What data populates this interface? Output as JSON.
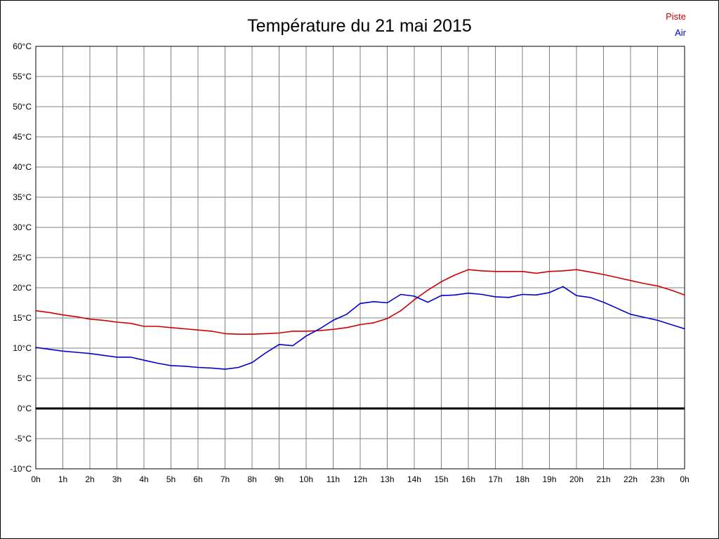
{
  "header": {
    "title": "Température du 21 mai 2015"
  },
  "chart_data": {
    "type": "line",
    "title": "Température du 21 mai 2015",
    "xlabel": "",
    "ylabel": "",
    "ylim": [
      -10,
      60
    ],
    "xlim_hours": [
      0,
      24
    ],
    "x_step_hours": 0.5,
    "grid": true,
    "legend_position": "top-right",
    "zero_line": true,
    "x_ticks": [
      "0h",
      "1h",
      "2h",
      "3h",
      "4h",
      "5h",
      "6h",
      "7h",
      "8h",
      "9h",
      "10h",
      "11h",
      "12h",
      "13h",
      "14h",
      "15h",
      "16h",
      "17h",
      "18h",
      "19h",
      "20h",
      "21h",
      "22h",
      "23h",
      "0h"
    ],
    "y_ticks": [
      "60°C",
      "55°C",
      "50°C",
      "45°C",
      "40°C",
      "35°C",
      "30°C",
      "25°C",
      "20°C",
      "15°C",
      "10°C",
      "5°C",
      "0°C",
      "-5°C",
      "-10°C"
    ],
    "series": [
      {
        "name": "Piste",
        "color": "#cc0000",
        "values": [
          16.2,
          15.9,
          15.5,
          15.2,
          14.8,
          14.6,
          14.3,
          14.1,
          13.6,
          13.6,
          13.4,
          13.2,
          13.0,
          12.8,
          12.4,
          12.3,
          12.3,
          12.4,
          12.5,
          12.8,
          12.8,
          12.9,
          13.1,
          13.4,
          13.9,
          14.2,
          14.9,
          16.2,
          18.0,
          19.6,
          21.0,
          22.1,
          23.0,
          22.8,
          22.7,
          22.7,
          22.7,
          22.4,
          22.7,
          22.8,
          23.0,
          22.6,
          22.2,
          21.7,
          21.2,
          20.7,
          20.3,
          19.6,
          18.8
        ]
      },
      {
        "name": "Air",
        "color": "#0000cc",
        "values": [
          10.1,
          9.8,
          9.5,
          9.3,
          9.1,
          8.8,
          8.5,
          8.5,
          8.0,
          7.5,
          7.1,
          7.0,
          6.8,
          6.7,
          6.5,
          6.8,
          7.6,
          9.2,
          10.6,
          10.4,
          12.0,
          13.2,
          14.6,
          15.6,
          17.4,
          17.7,
          17.5,
          18.9,
          18.6,
          17.6,
          18.7,
          18.8,
          19.1,
          18.9,
          18.5,
          18.4,
          18.9,
          18.8,
          19.2,
          20.2,
          18.7,
          18.4,
          17.6,
          16.6,
          15.6,
          15.1,
          14.6,
          13.9,
          13.2
        ]
      }
    ]
  }
}
